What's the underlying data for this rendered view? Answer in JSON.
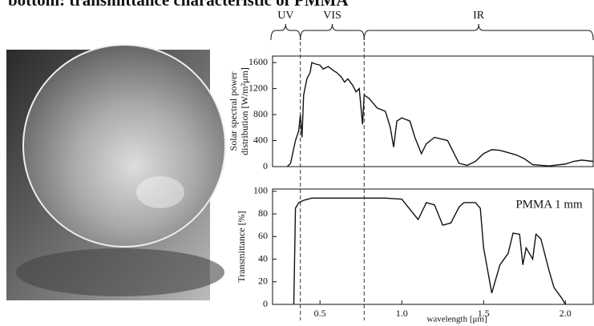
{
  "title": "bottom: transmittance characteristic of PMMA",
  "chart_data": [
    {
      "type": "line",
      "ylabel": [
        "Solar spectral power",
        "distribution [W/m²μm]"
      ],
      "regions": {
        "labels": [
          "UV",
          "VIS",
          "IR"
        ],
        "edges": [
          0.2,
          0.38,
          0.77,
          2.17
        ]
      },
      "xlim": [
        0.21,
        2.17
      ],
      "ylim": [
        0,
        1700
      ],
      "yticks": [
        0,
        400,
        800,
        1200,
        1600
      ],
      "x": [
        0.3,
        0.32,
        0.35,
        0.37,
        0.38,
        0.39,
        0.4,
        0.42,
        0.44,
        0.45,
        0.47,
        0.5,
        0.52,
        0.55,
        0.58,
        0.6,
        0.63,
        0.65,
        0.67,
        0.7,
        0.72,
        0.74,
        0.76,
        0.77,
        0.8,
        0.85,
        0.9,
        0.93,
        0.95,
        0.97,
        1.0,
        1.05,
        1.08,
        1.12,
        1.15,
        1.2,
        1.25,
        1.28,
        1.32,
        1.35,
        1.4,
        1.45,
        1.5,
        1.55,
        1.6,
        1.7,
        1.75,
        1.8,
        1.9,
        2.0,
        2.05,
        2.1,
        2.17
      ],
      "series": [
        {
          "color": "#111111",
          "values": [
            0,
            50,
            400,
            550,
            800,
            450,
            1100,
            1350,
            1450,
            1600,
            1580,
            1560,
            1500,
            1540,
            1480,
            1450,
            1380,
            1300,
            1350,
            1250,
            1150,
            1200,
            650,
            1100,
            1050,
            900,
            850,
            600,
            300,
            700,
            750,
            700,
            450,
            200,
            350,
            450,
            420,
            400,
            200,
            50,
            20,
            80,
            200,
            260,
            250,
            180,
            120,
            30,
            10,
            40,
            80,
            100,
            80
          ]
        }
      ]
    },
    {
      "type": "line",
      "ylabel": "Transmittance [%]",
      "xlabel": "wavelength [μm]",
      "annotation": "PMMA 1 mm",
      "xlim": [
        0.21,
        2.17
      ],
      "ylim": [
        0,
        102
      ],
      "yticks": [
        0,
        20,
        40,
        60,
        80,
        100
      ],
      "xticks": [
        0.5,
        {
          "value": 1,
          "label": "1.0"
        },
        1.5,
        {
          "value": 2,
          "label": "2.0"
        }
      ],
      "x": [
        0.34,
        0.35,
        0.37,
        0.4,
        0.45,
        0.9,
        1.0,
        1.1,
        1.15,
        1.2,
        1.25,
        1.3,
        1.35,
        1.38,
        1.45,
        1.48,
        1.5,
        1.55,
        1.6,
        1.65,
        1.68,
        1.72,
        1.74,
        1.76,
        1.8,
        1.82,
        1.85,
        1.9,
        1.93,
        1.98,
        2.0
      ],
      "series": [
        {
          "color": "#111111",
          "values": [
            0,
            85,
            90,
            92,
            94,
            94,
            93,
            75,
            90,
            88,
            70,
            72,
            86,
            90,
            90,
            85,
            50,
            10,
            35,
            45,
            63,
            62,
            35,
            50,
            40,
            62,
            58,
            30,
            15,
            5,
            0
          ]
        }
      ]
    }
  ]
}
